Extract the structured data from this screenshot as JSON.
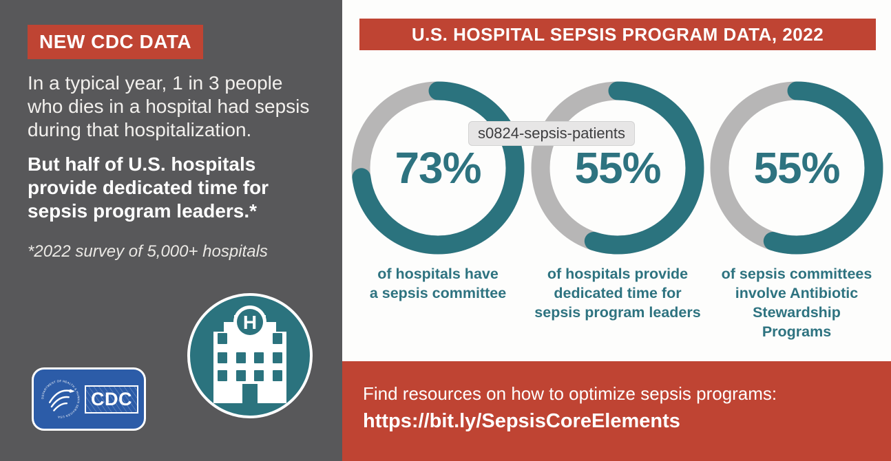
{
  "colors": {
    "accent_red": "#BF4433",
    "panel_gray": "#58585A",
    "teal": "#2B737E",
    "teal_text": "#2E7380",
    "track_gray": "#B7B6B6",
    "cdc_blue": "#2C5CA8",
    "background_white": "#FDFDFC"
  },
  "left_panel": {
    "badge": "NEW CDC DATA",
    "paragraph_regular": "In a typical year, 1 in 3 people\nwho dies in a hospital had sepsis\nduring that hospitalization.",
    "paragraph_bold": "But half of U.S. hospitals\nprovide dedicated time for\nsepsis program leaders.*",
    "footnote": "*2022 survey of 5,000+ hospitals",
    "cdc_logo": {
      "wordmark": "CDC",
      "arc_text": "DEPARTMENT OF HEALTH & HUMAN SERVICES USA"
    },
    "hospital_icon": {
      "letter": "H"
    }
  },
  "right_panel": {
    "header": "U.S. HOSPITAL SEPSIS PROGRAM DATA, 2022",
    "footer": {
      "line1": "Find resources on how to optimize sepsis programs:",
      "line2": "https://bit.ly/SepsisCoreElements"
    }
  },
  "overlay": {
    "tooltip": "s0824-sepsis-patients"
  },
  "chart_data": {
    "type": "pie",
    "variant": "donut-gauge-row",
    "title": "U.S. HOSPITAL SEPSIS PROGRAM DATA, 2022",
    "legend": "none",
    "series": [
      {
        "value": 73,
        "label": "73%",
        "caption": "of hospitals have\na sepsis committee"
      },
      {
        "value": 55,
        "label": "55%",
        "caption": "of hospitals provide\ndedicated time for\nsepsis program leaders"
      },
      {
        "value": 55,
        "label": "55%",
        "caption": "of sepsis committees\ninvolve Antibiotic\nStewardship\nPrograms"
      }
    ],
    "value_range": [
      0,
      100
    ],
    "colors": {
      "fill": "#2B737E",
      "track": "#B7B6B6"
    },
    "arc_start": "top",
    "arc_direction": "clockwise"
  }
}
